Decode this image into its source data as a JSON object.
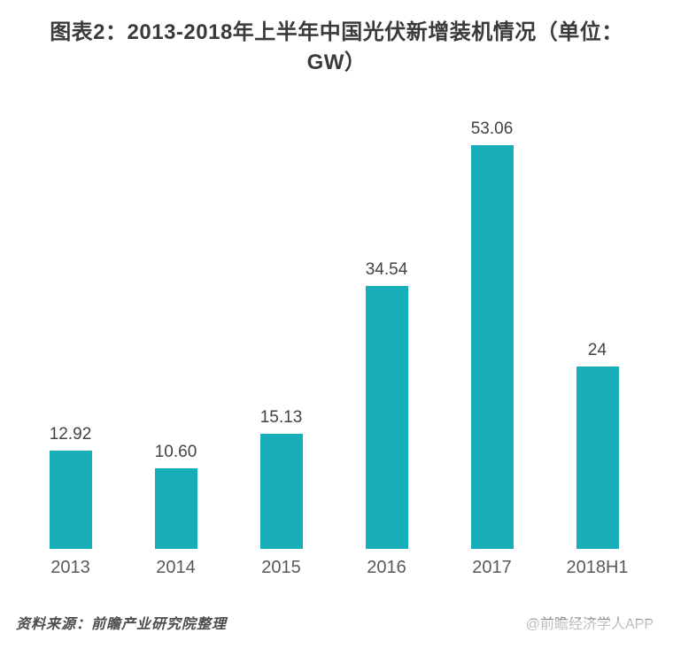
{
  "title": {
    "line1": "图表2：2013-2018年上半年中国光伏新增装机情况（单位：",
    "line2": "GW）"
  },
  "chart_data": {
    "type": "bar",
    "title": "图表2：2013-2018年上半年中国光伏新增装机情况（单位：GW）",
    "unit": "GW",
    "categories": [
      "2013",
      "2014",
      "2015",
      "2016",
      "2017",
      "2018H1"
    ],
    "values": [
      12.92,
      10.6,
      15.13,
      34.54,
      53.06,
      24
    ],
    "value_labels": [
      "12.92",
      "10.60",
      "15.13",
      "34.54",
      "53.06",
      "24"
    ],
    "bar_color": "#18AEB8",
    "xlabel": "",
    "ylabel": "",
    "ylim": [
      0,
      55
    ],
    "grid": false,
    "legend": "none",
    "value_labels_position": "above-bars",
    "axis_line": "none"
  },
  "footer": {
    "source": "资料来源：前瞻产业研究院整理",
    "credit": "@前瞻经济学人APP"
  },
  "colors": {
    "background": "#FFFFFF",
    "bar": "#18AEB8",
    "title_text": "#3A3A3A",
    "value_text": "#424242",
    "category_text": "#595959",
    "source_text": "#4D4D4D",
    "credit_text": "#8A8A8A"
  }
}
